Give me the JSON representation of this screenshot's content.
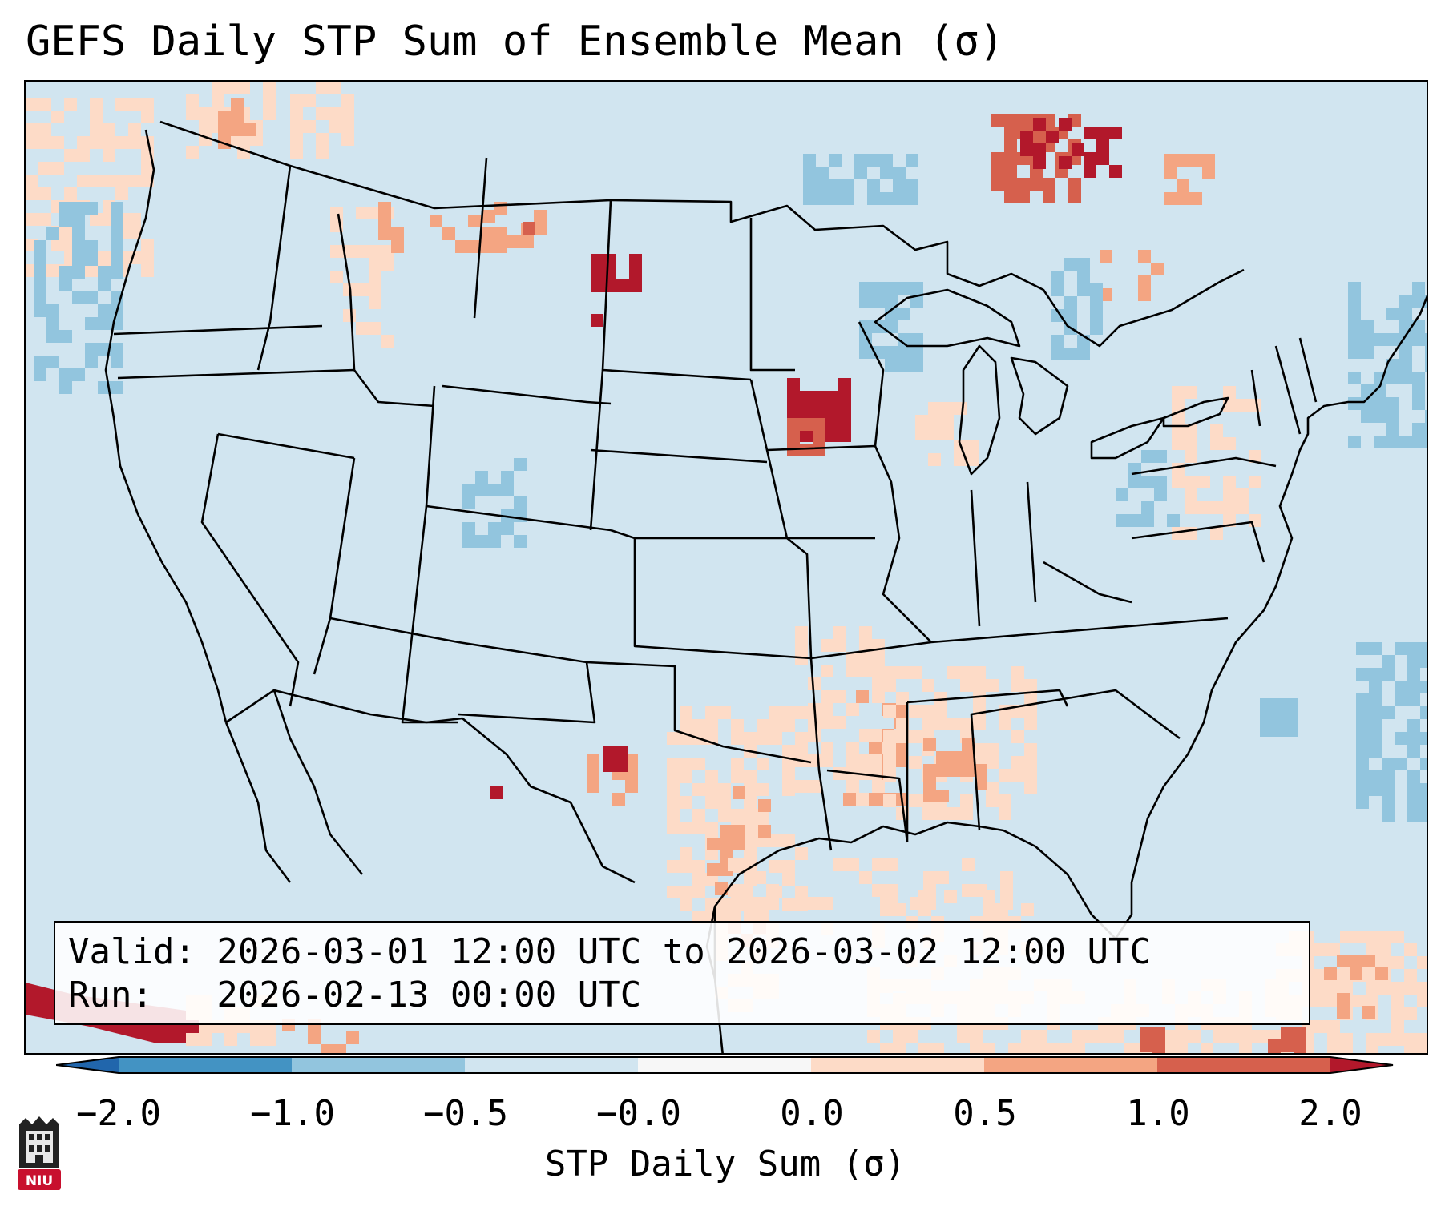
{
  "title": "GEFS Daily STP Sum of Ensemble Mean (σ)",
  "info": {
    "valid_line": "Valid: 2026-03-01 12:00 UTC to 2026-03-02 12:00 UTC",
    "run_line": "Run:   2026-02-13 00:00 UTC"
  },
  "colorbar": {
    "label": "STP Daily Sum (σ)",
    "ticks": [
      "−2.0",
      "−1.0",
      "−0.5",
      "−0.0",
      "0.0",
      "0.5",
      "1.0",
      "2.0"
    ],
    "colors": [
      "#2166ac",
      "#4393c3",
      "#92c5de",
      "#d1e5f0",
      "#f7f7f7",
      "#fddbc7",
      "#f4a582",
      "#d6604d",
      "#b2182b"
    ]
  },
  "logo": {
    "text": "NIU"
  },
  "chart_data": {
    "type": "heatmap",
    "title": "GEFS Daily STP Sum of Ensemble Mean (σ)",
    "units": "σ",
    "levels": [
      -2.0,
      -1.0,
      -0.5,
      -0.0,
      0.0,
      0.5,
      1.0,
      2.0
    ],
    "extend": "both",
    "background_value_range": [
      -0.5,
      -0.0
    ],
    "notable_anomalies": [
      {
        "region": "Western South Dakota",
        "category": ">2.0"
      },
      {
        "region": "Northern Iowa",
        "category": ">2.0"
      },
      {
        "region": "Northern Ontario",
        "category": "1.0 to 2.0+"
      },
      {
        "region": "Western Texas",
        "category": "1.0 to 2.0+"
      },
      {
        "region": "Montana",
        "category": "0.5 to 1.0"
      },
      {
        "region": "Lower Mississippi Valley / Gulf Coast",
        "category": "0.0 to 0.5"
      },
      {
        "region": "Colorado",
        "category": "-1.0 to -0.5"
      },
      {
        "region": "Western Atlantic",
        "category": "-1.0 to -0.5"
      }
    ]
  }
}
